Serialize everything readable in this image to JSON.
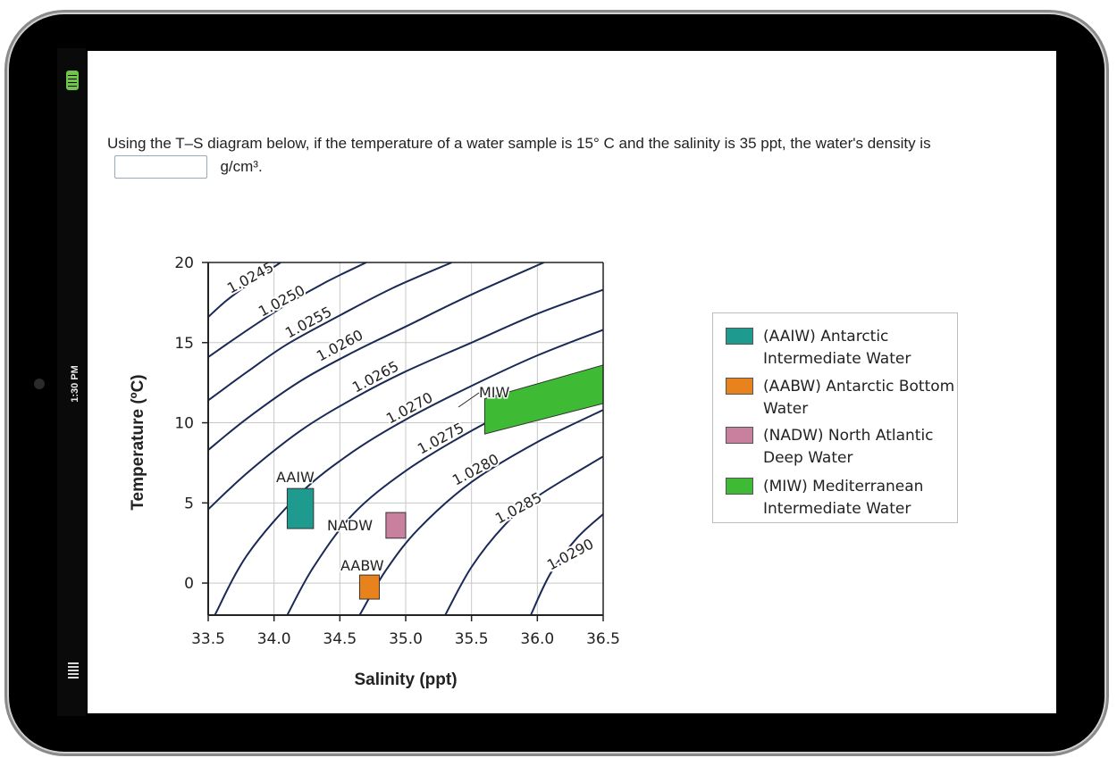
{
  "device": {
    "time": "1:30 PM"
  },
  "question": {
    "text": "Using the T–S diagram below, if the temperature of a water sample is 15° C and the salinity is 35 ppt, the water's density is",
    "unit": "g/cm³.",
    "input_value": ""
  },
  "chart_data": {
    "type": "line",
    "xlabel": "Salinity (ppt)",
    "ylabel": "Temperature (ºC)",
    "xlim": [
      33.5,
      36.5
    ],
    "ylim": [
      -2,
      20
    ],
    "x_ticks": [
      "33.5",
      "34.0",
      "34.5",
      "35.0",
      "35.5",
      "36.0",
      "36.5"
    ],
    "y_ticks": [
      "0",
      "5",
      "10",
      "15",
      "20"
    ],
    "grid": true,
    "legend_position": "right",
    "isopycnals": [
      {
        "label": "1.0245",
        "points": [
          [
            33.5,
            16.6
          ],
          [
            33.65,
            17.7
          ],
          [
            33.85,
            18.9
          ],
          [
            34.05,
            20
          ]
        ]
      },
      {
        "label": "1.0250",
        "points": [
          [
            33.5,
            14.1
          ],
          [
            33.8,
            15.8
          ],
          [
            34.1,
            17.4
          ],
          [
            34.4,
            18.8
          ],
          [
            34.7,
            20
          ]
        ]
      },
      {
        "label": "1.0255",
        "points": [
          [
            33.5,
            11.4
          ],
          [
            33.8,
            13.2
          ],
          [
            34.1,
            14.9
          ],
          [
            34.5,
            16.7
          ],
          [
            34.9,
            18.4
          ],
          [
            35.35,
            20
          ]
        ]
      },
      {
        "label": "1.0260",
        "points": [
          [
            33.5,
            8.3
          ],
          [
            33.8,
            10.3
          ],
          [
            34.2,
            12.6
          ],
          [
            34.6,
            14.4
          ],
          [
            35.0,
            16.0
          ],
          [
            35.5,
            18.0
          ],
          [
            36.05,
            20
          ]
        ]
      },
      {
        "label": "1.0265",
        "points": [
          [
            33.5,
            4.6
          ],
          [
            33.8,
            6.9
          ],
          [
            34.2,
            9.5
          ],
          [
            34.6,
            11.5
          ],
          [
            35.0,
            13.2
          ],
          [
            35.5,
            15.0
          ],
          [
            36.0,
            16.8
          ],
          [
            36.5,
            18.3
          ]
        ]
      },
      {
        "label": "1.0270",
        "points": [
          [
            33.55,
            -2
          ],
          [
            33.8,
            1.8
          ],
          [
            34.2,
            5.6
          ],
          [
            34.6,
            8.2
          ],
          [
            35.0,
            10.2
          ],
          [
            35.5,
            12.3
          ],
          [
            36.0,
            14.2
          ],
          [
            36.5,
            15.8
          ]
        ]
      },
      {
        "label": "1.0275",
        "points": [
          [
            34.1,
            -2
          ],
          [
            34.3,
            1.0
          ],
          [
            34.6,
            4.3
          ],
          [
            35.0,
            7.0
          ],
          [
            35.5,
            9.5
          ],
          [
            36.0,
            11.6
          ],
          [
            36.5,
            13.4
          ]
        ]
      },
      {
        "label": "1.0280",
        "points": [
          [
            34.65,
            -2
          ],
          [
            34.85,
            0.8
          ],
          [
            35.1,
            3.4
          ],
          [
            35.5,
            6.3
          ],
          [
            36.0,
            8.8
          ],
          [
            36.5,
            10.8
          ]
        ]
      },
      {
        "label": "1.0285",
        "points": [
          [
            35.3,
            -2
          ],
          [
            35.5,
            1.0
          ],
          [
            35.75,
            3.6
          ],
          [
            36.0,
            5.4
          ],
          [
            36.5,
            7.9
          ]
        ]
      },
      {
        "label": "1.0290",
        "points": [
          [
            35.95,
            -2
          ],
          [
            36.1,
            0.6
          ],
          [
            36.3,
            2.8
          ],
          [
            36.5,
            4.3
          ]
        ]
      }
    ],
    "water_masses": [
      {
        "label": "AAIW",
        "name": "(AAIW) Antarctic Intermediate Water",
        "color": "#1f9a8e",
        "s": [
          34.1,
          34.3
        ],
        "t": [
          3.4,
          5.9
        ]
      },
      {
        "label": "AABW",
        "name": "(AABW) Antarctic Bottom Water",
        "color": "#e8821c",
        "s": [
          34.65,
          34.8
        ],
        "t": [
          -1.0,
          0.5
        ]
      },
      {
        "label": "NADW",
        "name": "(NADW) North Atlantic Deep Water",
        "color": "#c9809f",
        "s": [
          34.85,
          35.0
        ],
        "t": [
          2.8,
          4.4
        ]
      },
      {
        "label": "MIW",
        "name": "(MIW) Mediterranean Intermediate Water",
        "color": "#3fba35",
        "polygon": [
          [
            35.6,
            9.3
          ],
          [
            35.6,
            11.5
          ],
          [
            36.5,
            13.6
          ],
          [
            36.5,
            11.2
          ]
        ]
      }
    ]
  }
}
